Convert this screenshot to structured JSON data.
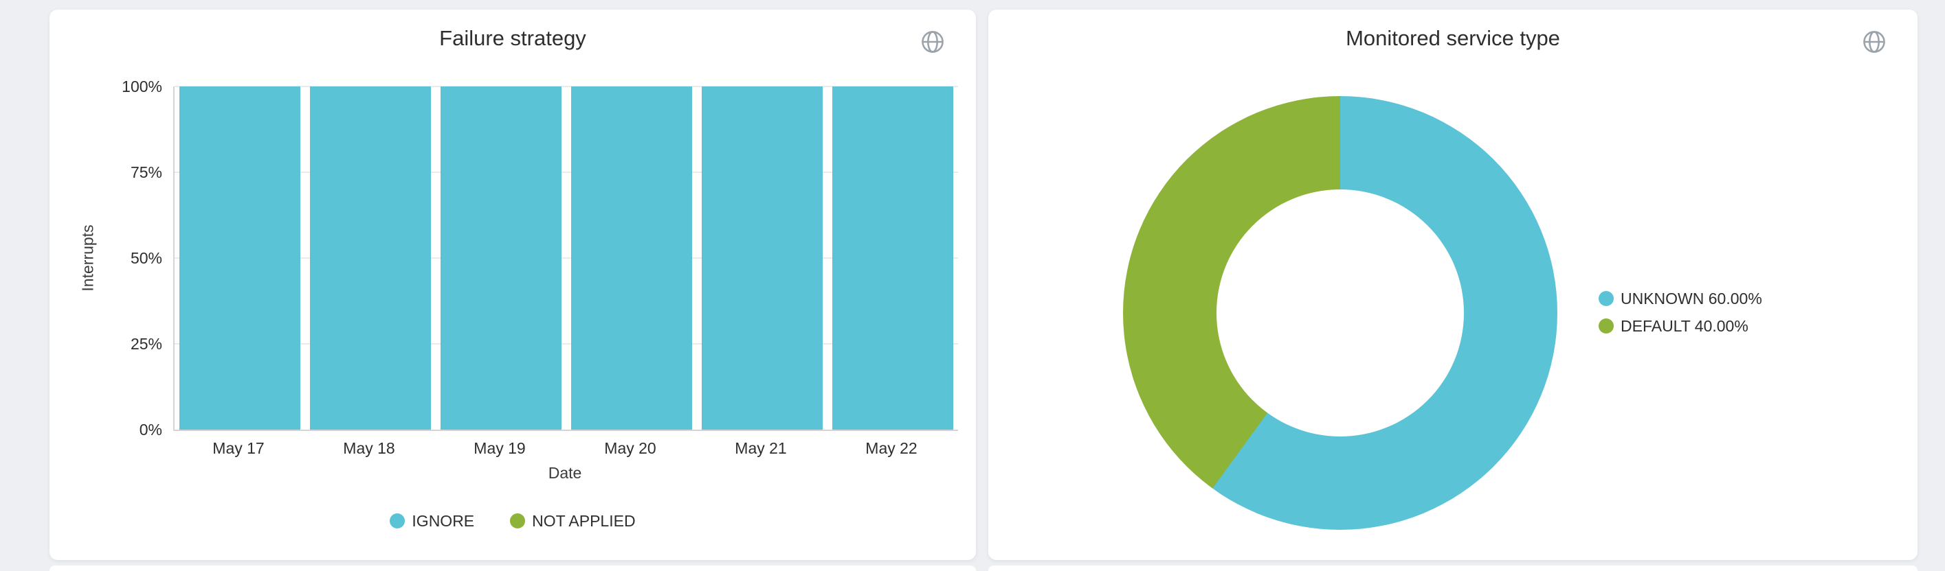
{
  "page": {
    "background": "#edeff3"
  },
  "cards": [
    {
      "title": "Failure strategy"
    },
    {
      "title": "Monitored service type"
    }
  ],
  "icons": {
    "corner": "globe-icon"
  },
  "chart_data": [
    {
      "type": "bar",
      "stacked": true,
      "title": "Failure strategy",
      "categories": [
        "May 17",
        "May 18",
        "May 19",
        "May 20",
        "May 21",
        "May 22"
      ],
      "series": [
        {
          "name": "IGNORE",
          "color": "#5ac3d5",
          "values": [
            100,
            100,
            100,
            100,
            100,
            100
          ]
        },
        {
          "name": "NOT APPLIED",
          "color": "#8db438",
          "values": [
            0,
            0,
            0,
            0,
            0,
            0
          ]
        }
      ],
      "xlabel": "Date",
      "ylabel": "Interrupts",
      "ylim": [
        0,
        100
      ],
      "yticks": [
        "0%",
        "25%",
        "50%",
        "75%",
        "100%"
      ],
      "unit": "percent",
      "grid": true,
      "legend_position": "bottom"
    },
    {
      "type": "pie",
      "donut": true,
      "title": "Monitored service type",
      "slices": [
        {
          "label": "UNKNOWN",
          "value": 60.0,
          "color": "#5ac3d5",
          "legend": "UNKNOWN 60.00%"
        },
        {
          "label": "DEFAULT",
          "value": 40.0,
          "color": "#8db438",
          "legend": "DEFAULT 40.00%"
        }
      ],
      "start_angle_deg": 0,
      "direction": "clockwise",
      "legend_position": "right"
    }
  ]
}
